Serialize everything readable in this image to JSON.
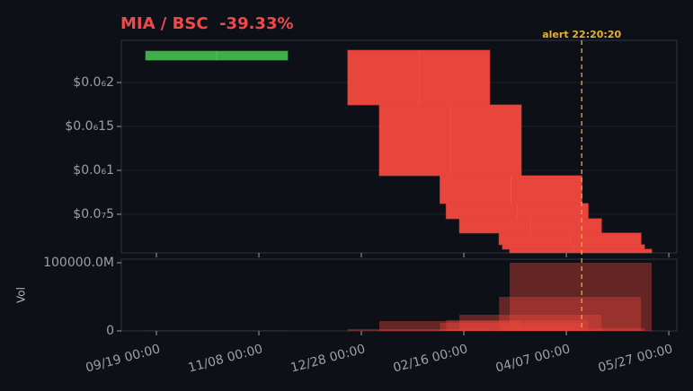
{
  "chart_data": {
    "type": "candlestick",
    "title": "MIA / BSC  -39.33%",
    "x": [
      29.4,
      128,
      143.4,
      173,
      176,
      182.5,
      201.8,
      203.5,
      207
    ],
    "open": [
      2.255e-07,
      2.367e-07,
      1.745e-07,
      9.39e-08,
      6.22e-08,
      4.49e-08,
      2.86e-08,
      1.53e-08,
      1.02e-08
    ],
    "high": [
      2.357e-07,
      2.367e-07,
      1.745e-07,
      9.39e-08,
      6.22e-08,
      4.49e-08,
      2.86e-08,
      1.53e-08,
      1.02e-08
    ],
    "low": [
      2.255e-07,
      1.745e-07,
      9.39e-08,
      6.22e-08,
      4.49e-08,
      2.86e-08,
      1.53e-08,
      1.02e-08,
      6.1e-09
    ],
    "close": [
      2.357e-07,
      1.745e-07,
      9.39e-08,
      6.22e-08,
      4.49e-08,
      2.86e-08,
      1.53e-08,
      1.02e-08,
      6.1e-09
    ],
    "volume": [
      300000000,
      2600000000,
      14500000000,
      12000000000,
      15800000000,
      23700000000,
      50000000000,
      4000000000,
      100000000000
    ],
    "up_color": "#3fae4a",
    "down_color": "#e8453c",
    "xlim": [
      -17.1,
      253.9
    ],
    "xticks": [
      {
        "value": 0,
        "label": "09/19 00:00"
      },
      {
        "value": 50,
        "label": "11/08 00:00"
      },
      {
        "value": 100,
        "label": "12/28 00:00"
      },
      {
        "value": 150,
        "label": "02/16 00:00"
      },
      {
        "value": 200,
        "label": "04/07 00:00"
      },
      {
        "value": 250,
        "label": "05/27 00:00"
      }
    ],
    "ylim": [
      6e-09,
      2.48e-07
    ],
    "yticks": [
      {
        "value": 5e-08,
        "label": "$0.0₇5"
      },
      {
        "value": 1e-07,
        "label": "$0.0₆1"
      },
      {
        "value": 1.5e-07,
        "label": "$0.0₆15"
      },
      {
        "value": 2e-07,
        "label": "$0.0₆2"
      }
    ],
    "volume_label": "Vol",
    "y2lim": [
      0,
      100000000000
    ],
    "y2ticks": [
      0,
      {
        "value": 100000000000,
        "label": "100000.0M"
      }
    ],
    "alert": {
      "x": 207.5,
      "label": "alert 22:20:20",
      "color": "#e6b030"
    },
    "grid": true
  }
}
